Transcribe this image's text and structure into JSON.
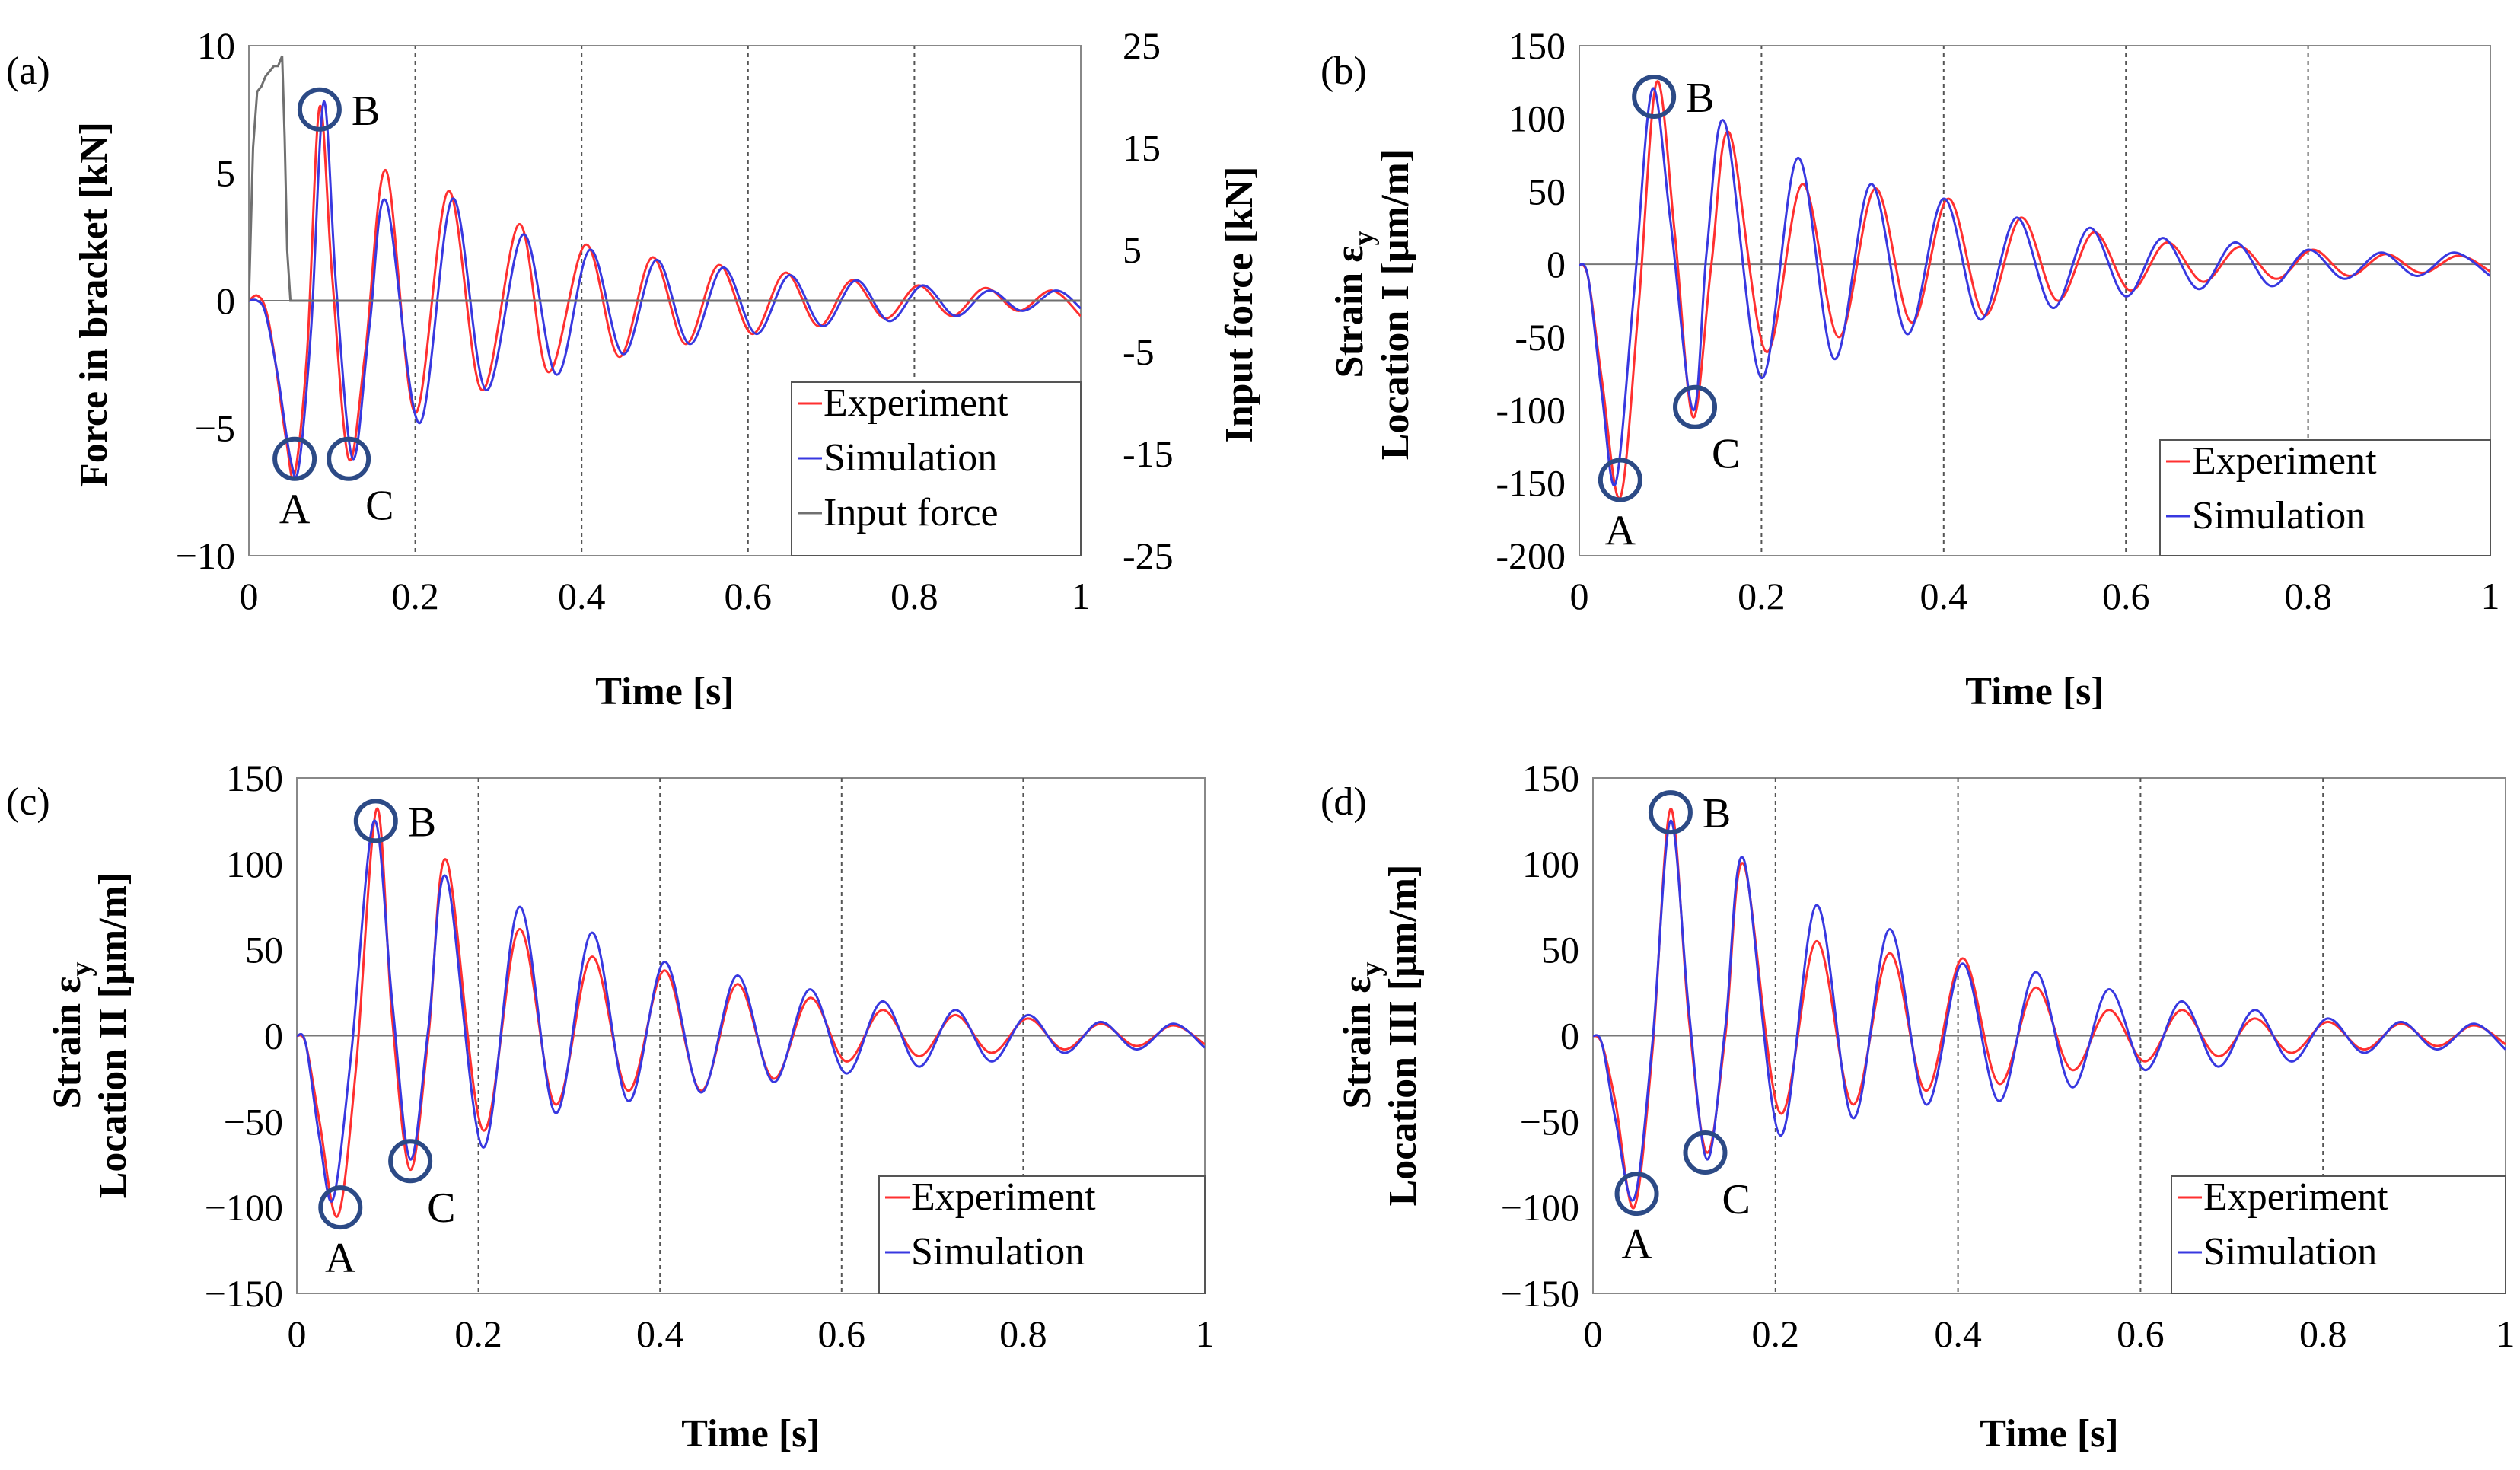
{
  "chart_data": [
    {
      "id": "a",
      "panel_label": "(a)",
      "type": "line",
      "xlabel": "Time [s]",
      "ylabel": "Force in bracket [kN]",
      "y2label": "Input force [kN]",
      "xlim": [
        0,
        1
      ],
      "ylim": [
        -10,
        10
      ],
      "y2lim": [
        -25,
        25
      ],
      "xticks": [
        0,
        0.2,
        0.4,
        0.6,
        0.8,
        1
      ],
      "xtick_labels": [
        "0",
        "0.2",
        "0.4",
        "0.6",
        "0.8",
        "1"
      ],
      "yticks": [
        -10,
        -5,
        0,
        5,
        10
      ],
      "ytick_labels": [
        "−10",
        "−5",
        "0",
        "5",
        "10"
      ],
      "y2ticks": [
        -25,
        -15,
        -5,
        5,
        15,
        25
      ],
      "y2tick_labels": [
        "-25",
        "-15",
        "-5",
        "5",
        "15",
        "25"
      ],
      "legend_position": "bottom-right",
      "series": [
        {
          "name": "Experiment",
          "color": "#ff3030",
          "axis": "left",
          "x": [
            0,
            0.01,
            0.02,
            0.03,
            0.045,
            0.055,
            0.07,
            0.085,
            0.1,
            0.12,
            0.14,
            0.165,
            0.2,
            0.24,
            0.28,
            0.325,
            0.36,
            0.405,
            0.445,
            0.485,
            0.525,
            0.565,
            0.605,
            0.645,
            0.685,
            0.725,
            0.765,
            0.805,
            0.845,
            0.885,
            0.925,
            0.965,
            1.0
          ],
          "y": [
            0,
            0.2,
            -0.3,
            -2,
            -5.5,
            -6.8,
            -2,
            7.6,
            1,
            -6.2,
            -2,
            5.1,
            -4.4,
            4.3,
            -3.5,
            3.0,
            -2.8,
            2.2,
            -2.2,
            1.7,
            -1.7,
            1.4,
            -1.3,
            1.1,
            -1.0,
            0.8,
            -0.7,
            0.6,
            -0.6,
            0.5,
            -0.4,
            0.4,
            -0.6
          ]
        },
        {
          "name": "Simulation",
          "color": "#3838e0",
          "axis": "left",
          "x": [
            0,
            0.01,
            0.02,
            0.035,
            0.05,
            0.06,
            0.075,
            0.09,
            0.105,
            0.125,
            0.145,
            0.165,
            0.205,
            0.245,
            0.285,
            0.33,
            0.37,
            0.41,
            0.45,
            0.49,
            0.53,
            0.57,
            0.61,
            0.65,
            0.69,
            0.73,
            0.77,
            0.81,
            0.85,
            0.89,
            0.93,
            0.97,
            1.0
          ],
          "y": [
            0,
            0,
            -0.5,
            -3,
            -6.2,
            -6.5,
            -1,
            7.8,
            0.5,
            -6.2,
            -1,
            3.9,
            -4.8,
            4.0,
            -3.5,
            2.6,
            -2.9,
            2.0,
            -2.1,
            1.6,
            -1.7,
            1.3,
            -1.3,
            1.0,
            -1.0,
            0.8,
            -0.8,
            0.6,
            -0.6,
            0.4,
            -0.4,
            0.4,
            -0.3
          ]
        },
        {
          "name": "Input force",
          "color": "#707070",
          "axis": "right",
          "x": [
            0,
            0.005,
            0.01,
            0.015,
            0.02,
            0.025,
            0.03,
            0.035,
            0.04,
            0.043,
            0.046,
            0.05,
            1.0
          ],
          "y": [
            0,
            15,
            20.5,
            21,
            22,
            22.5,
            23,
            23,
            24,
            16,
            5,
            0,
            0
          ]
        }
      ],
      "points": [
        {
          "label": "A",
          "x": 0.055,
          "y": -6.2
        },
        {
          "label": "B",
          "x": 0.085,
          "y": 7.5
        },
        {
          "label": "C",
          "x": 0.12,
          "y": -6.2
        }
      ]
    },
    {
      "id": "b",
      "panel_label": "(b)",
      "type": "line",
      "xlabel": "Time [s]",
      "ylabel_line1": "Strain ε",
      "ylabel_sub": "y",
      "ylabel_line2": "Location I [µm/m]",
      "xlim": [
        0,
        1
      ],
      "ylim": [
        -200,
        150
      ],
      "xticks": [
        0,
        0.2,
        0.4,
        0.6,
        0.8,
        1
      ],
      "xtick_labels": [
        "0",
        "0.2",
        "0.4",
        "0.6",
        "0.8",
        "1"
      ],
      "yticks": [
        -200,
        -150,
        -100,
        -50,
        0,
        50,
        100,
        150
      ],
      "ytick_labels": [
        "-200",
        "-150",
        "-100",
        "-50",
        "0",
        "50",
        "100",
        "150"
      ],
      "legend_position": "bottom-right",
      "series": [
        {
          "name": "Experiment",
          "color": "#ff3030",
          "x": [
            0,
            0.01,
            0.025,
            0.045,
            0.065,
            0.085,
            0.105,
            0.125,
            0.145,
            0.165,
            0.205,
            0.245,
            0.285,
            0.325,
            0.365,
            0.405,
            0.445,
            0.485,
            0.525,
            0.565,
            0.605,
            0.645,
            0.685,
            0.725,
            0.765,
            0.805,
            0.845,
            0.885,
            0.925,
            0.965,
            1.0
          ],
          "y": [
            0,
            -10,
            -80,
            -160,
            -30,
            125,
            20,
            -105,
            0,
            90,
            -60,
            55,
            -50,
            52,
            -40,
            45,
            -35,
            32,
            -25,
            22,
            -18,
            15,
            -12,
            12,
            -10,
            10,
            -8,
            7,
            -6,
            6,
            -5
          ]
        },
        {
          "name": "Simulation",
          "color": "#3838e0",
          "x": [
            0,
            0.01,
            0.025,
            0.04,
            0.06,
            0.08,
            0.1,
            0.125,
            0.14,
            0.16,
            0.2,
            0.24,
            0.28,
            0.32,
            0.36,
            0.4,
            0.44,
            0.48,
            0.52,
            0.56,
            0.6,
            0.64,
            0.68,
            0.72,
            0.76,
            0.8,
            0.84,
            0.88,
            0.92,
            0.96,
            1.0
          ],
          "y": [
            0,
            -10,
            -90,
            -150,
            -20,
            120,
            30,
            -100,
            10,
            97,
            -78,
            73,
            -65,
            55,
            -48,
            45,
            -38,
            32,
            -30,
            25,
            -22,
            18,
            -17,
            15,
            -15,
            10,
            -10,
            8,
            -8,
            8,
            -8
          ]
        }
      ],
      "points": [
        {
          "label": "A",
          "x": 0.045,
          "y": -148
        },
        {
          "label": "B",
          "x": 0.082,
          "y": 115
        },
        {
          "label": "C",
          "x": 0.127,
          "y": -98
        }
      ]
    },
    {
      "id": "c",
      "panel_label": "(c)",
      "type": "line",
      "xlabel": "Time [s]",
      "ylabel_line1": "Strain ε",
      "ylabel_sub": "y",
      "ylabel_line2": "Location II [µm/m]",
      "xlim": [
        0,
        1
      ],
      "ylim": [
        -150,
        150
      ],
      "xticks": [
        0,
        0.2,
        0.4,
        0.6,
        0.8,
        1
      ],
      "xtick_labels": [
        "0",
        "0.2",
        "0.4",
        "0.6",
        "0.8",
        "1"
      ],
      "yticks": [
        -150,
        -100,
        -50,
        0,
        50,
        100,
        150
      ],
      "ytick_labels": [
        "−150",
        "−100",
        "−50",
        "0",
        "50",
        "100",
        "150"
      ],
      "legend_position": "bottom-right",
      "series": [
        {
          "name": "Experiment",
          "color": "#ff3030",
          "x": [
            0,
            0.01,
            0.025,
            0.045,
            0.065,
            0.088,
            0.105,
            0.125,
            0.145,
            0.165,
            0.205,
            0.245,
            0.285,
            0.325,
            0.365,
            0.405,
            0.445,
            0.485,
            0.525,
            0.565,
            0.605,
            0.645,
            0.685,
            0.725,
            0.765,
            0.805,
            0.845,
            0.885,
            0.925,
            0.965,
            1.0
          ],
          "y": [
            0,
            -5,
            -50,
            -105,
            -20,
            132,
            10,
            -78,
            0,
            102,
            -55,
            62,
            -40,
            46,
            -32,
            38,
            -32,
            30,
            -25,
            22,
            -15,
            15,
            -12,
            12,
            -10,
            10,
            -8,
            7,
            -6,
            6,
            -5
          ]
        },
        {
          "name": "Simulation",
          "color": "#3838e0",
          "x": [
            0,
            0.01,
            0.025,
            0.04,
            0.06,
            0.085,
            0.105,
            0.125,
            0.145,
            0.165,
            0.205,
            0.245,
            0.285,
            0.325,
            0.365,
            0.405,
            0.445,
            0.485,
            0.525,
            0.565,
            0.605,
            0.645,
            0.685,
            0.725,
            0.765,
            0.805,
            0.845,
            0.885,
            0.925,
            0.965,
            1.0
          ],
          "y": [
            0,
            -5,
            -60,
            -95,
            -10,
            125,
            20,
            -72,
            5,
            92,
            -65,
            75,
            -45,
            60,
            -38,
            43,
            -33,
            35,
            -27,
            27,
            -22,
            20,
            -18,
            15,
            -15,
            12,
            -10,
            8,
            -8,
            7,
            -7
          ]
        }
      ],
      "points": [
        {
          "label": "A",
          "x": 0.048,
          "y": -100
        },
        {
          "label": "B",
          "x": 0.087,
          "y": 125
        },
        {
          "label": "C",
          "x": 0.125,
          "y": -73
        }
      ]
    },
    {
      "id": "d",
      "panel_label": "(d)",
      "type": "line",
      "xlabel": "Time [s]",
      "ylabel_line1": "Strain ε",
      "ylabel_sub": "y",
      "ylabel_line2": "Location III [µm/m]",
      "xlim": [
        0,
        1
      ],
      "ylim": [
        -150,
        150
      ],
      "xticks": [
        0,
        0.2,
        0.4,
        0.6,
        0.8,
        1
      ],
      "xtick_labels": [
        "0",
        "0.2",
        "0.4",
        "0.6",
        "0.8",
        "1"
      ],
      "yticks": [
        -150,
        -100,
        -50,
        0,
        50,
        100,
        150
      ],
      "ytick_labels": [
        "−150",
        "−100",
        "−50",
        "0",
        "50",
        "100",
        "150"
      ],
      "legend_position": "bottom-right",
      "series": [
        {
          "name": "Experiment",
          "color": "#ff3030",
          "x": [
            0,
            0.01,
            0.025,
            0.045,
            0.065,
            0.085,
            0.105,
            0.125,
            0.145,
            0.165,
            0.205,
            0.245,
            0.285,
            0.325,
            0.365,
            0.405,
            0.445,
            0.485,
            0.525,
            0.565,
            0.605,
            0.645,
            0.685,
            0.725,
            0.765,
            0.805,
            0.845,
            0.885,
            0.925,
            0.965,
            1.0
          ],
          "y": [
            0,
            -5,
            -40,
            -100,
            -10,
            132,
            10,
            -68,
            0,
            100,
            -45,
            55,
            -40,
            48,
            -32,
            45,
            -28,
            28,
            -20,
            15,
            -15,
            15,
            -12,
            10,
            -10,
            8,
            -8,
            7,
            -6,
            6,
            -5
          ]
        },
        {
          "name": "Simulation",
          "color": "#3838e0",
          "x": [
            0,
            0.01,
            0.025,
            0.045,
            0.065,
            0.085,
            0.105,
            0.125,
            0.145,
            0.165,
            0.205,
            0.245,
            0.285,
            0.325,
            0.365,
            0.405,
            0.445,
            0.485,
            0.525,
            0.565,
            0.605,
            0.645,
            0.685,
            0.725,
            0.765,
            0.805,
            0.845,
            0.885,
            0.925,
            0.965,
            1.0
          ],
          "y": [
            0,
            -5,
            -50,
            -95,
            -5,
            125,
            15,
            -72,
            5,
            103,
            -58,
            76,
            -48,
            62,
            -40,
            42,
            -38,
            37,
            -30,
            27,
            -20,
            20,
            -18,
            15,
            -15,
            10,
            -10,
            8,
            -8,
            7,
            -8
          ]
        }
      ],
      "points": [
        {
          "label": "A",
          "x": 0.048,
          "y": -92
        },
        {
          "label": "B",
          "x": 0.085,
          "y": 130
        },
        {
          "label": "C",
          "x": 0.123,
          "y": -68
        }
      ]
    }
  ]
}
